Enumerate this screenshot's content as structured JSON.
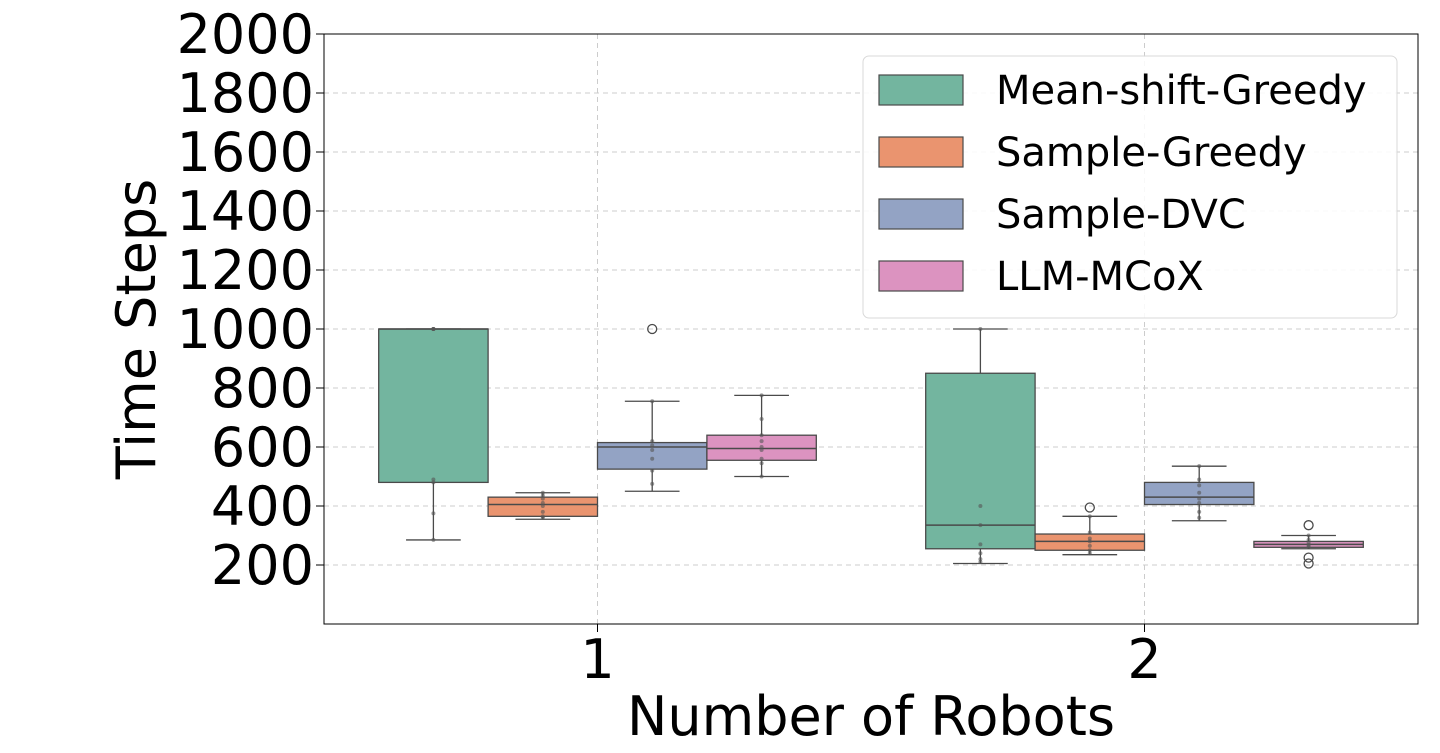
{
  "chart_data": {
    "type": "box",
    "title": "",
    "xlabel": "Number of Robots",
    "ylabel": "Time Steps",
    "categories": [
      "1",
      "2"
    ],
    "ylim": [
      0,
      2000
    ],
    "yticks": [
      200,
      400,
      600,
      800,
      1000,
      1200,
      1400,
      1600,
      1800,
      2000
    ],
    "grid": true,
    "legend_position": "top-right",
    "series": [
      {
        "name": "Mean-shift-Greedy",
        "color": "#73b59f",
        "boxes": [
          {
            "category": "1",
            "whisker_low": 285,
            "q1": 480,
            "median": 1000,
            "q3": 1000,
            "whisker_high": 1000,
            "outliers": [],
            "points": [
              1000,
              1000,
              1000,
              1000,
              490,
              480,
              375,
              285
            ]
          },
          {
            "category": "2",
            "whisker_low": 205,
            "q1": 255,
            "median": 335,
            "q3": 850,
            "whisker_high": 1000,
            "outliers": [],
            "points": [
              1000,
              400,
              335,
              270,
              240,
              220,
              210
            ]
          }
        ]
      },
      {
        "name": "Sample-Greedy",
        "color": "#ea946f",
        "boxes": [
          {
            "category": "1",
            "whisker_low": 355,
            "q1": 365,
            "median": 405,
            "q3": 430,
            "whisker_high": 445,
            "outliers": [],
            "points": [
              445,
              435,
              425,
              410,
              400,
              380,
              365,
              360
            ]
          },
          {
            "category": "2",
            "whisker_low": 235,
            "q1": 250,
            "median": 280,
            "q3": 305,
            "whisker_high": 365,
            "outliers": [
              395
            ],
            "points": [
              365,
              310,
              290,
              280,
              265,
              250,
              240
            ]
          }
        ]
      },
      {
        "name": "Sample-DVC",
        "color": "#93a3c4",
        "boxes": [
          {
            "category": "1",
            "whisker_low": 450,
            "q1": 525,
            "median": 600,
            "q3": 615,
            "whisker_high": 755,
            "outliers": [
              1000
            ],
            "points": [
              755,
              620,
              605,
              590,
              560,
              520,
              475
            ]
          },
          {
            "category": "2",
            "whisker_low": 350,
            "q1": 405,
            "median": 430,
            "q3": 480,
            "whisker_high": 535,
            "outliers": [],
            "points": [
              535,
              490,
              470,
              445,
              425,
              410,
              380,
              360
            ]
          }
        ]
      },
      {
        "name": "LLM-MCoX",
        "color": "#dc93c0",
        "boxes": [
          {
            "category": "1",
            "whisker_low": 500,
            "q1": 555,
            "median": 595,
            "q3": 640,
            "whisker_high": 775,
            "outliers": [],
            "points": [
              775,
              695,
              640,
              620,
              600,
              590,
              560,
              545,
              500
            ]
          },
          {
            "category": "2",
            "whisker_low": 255,
            "q1": 260,
            "median": 270,
            "q3": 280,
            "whisker_high": 300,
            "outliers": [
              335,
              225,
              205
            ],
            "points": [
              300,
              285,
              275,
              268,
              262
            ]
          }
        ]
      }
    ]
  }
}
